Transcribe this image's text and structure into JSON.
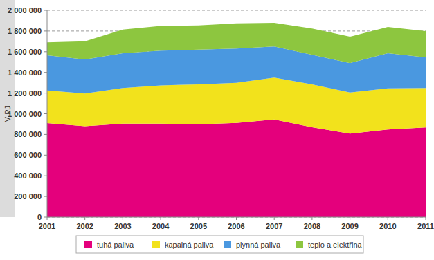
{
  "chart_data": {
    "type": "area",
    "stacked": true,
    "grid": true,
    "legend": "bottom",
    "y_label": "V PJ",
    "categories": [
      "2001",
      "2002",
      "2003",
      "2004",
      "2005",
      "2006",
      "2007",
      "2008",
      "2009",
      "2010",
      "2011"
    ],
    "series": [
      {
        "name": "tuhá paliva",
        "color": "#e4007c",
        "values": [
          910000,
          880000,
          905000,
          905000,
          898000,
          912000,
          945000,
          870000,
          808000,
          848000,
          868000
        ]
      },
      {
        "name": "kapalná paliva",
        "color": "#f2e21c",
        "values": [
          315000,
          315000,
          345000,
          370000,
          387000,
          388000,
          405000,
          415000,
          397000,
          397000,
          382000
        ]
      },
      {
        "name": "plynná paliva",
        "color": "#4a98e0",
        "values": [
          340000,
          330000,
          335000,
          335000,
          335000,
          330000,
          300000,
          285000,
          285000,
          340000,
          295000
        ]
      },
      {
        "name": "teplo a elektřina",
        "color": "#8dc63f",
        "values": [
          125000,
          175000,
          230000,
          240000,
          235000,
          245000,
          230000,
          255000,
          255000,
          255000,
          255000
        ]
      }
    ],
    "ylim": [
      0,
      2000000
    ],
    "yticks": [
      0,
      {
        "value": 200000,
        "label": "200 000"
      },
      {
        "value": 400000,
        "label": "400 000"
      },
      {
        "value": 600000,
        "label": "600 000"
      },
      {
        "value": 800000,
        "label": "800 000"
      },
      {
        "value": 1000000,
        "label": "1 000 000"
      },
      {
        "value": 1200000,
        "label": "1 200 000"
      },
      {
        "value": 1400000,
        "label": "1 400 000"
      },
      {
        "value": 1600000,
        "label": "1 600 000"
      },
      {
        "value": 1800000,
        "label": "1 800 000"
      },
      {
        "value": 2000000,
        "label": "2 000 000"
      }
    ]
  }
}
